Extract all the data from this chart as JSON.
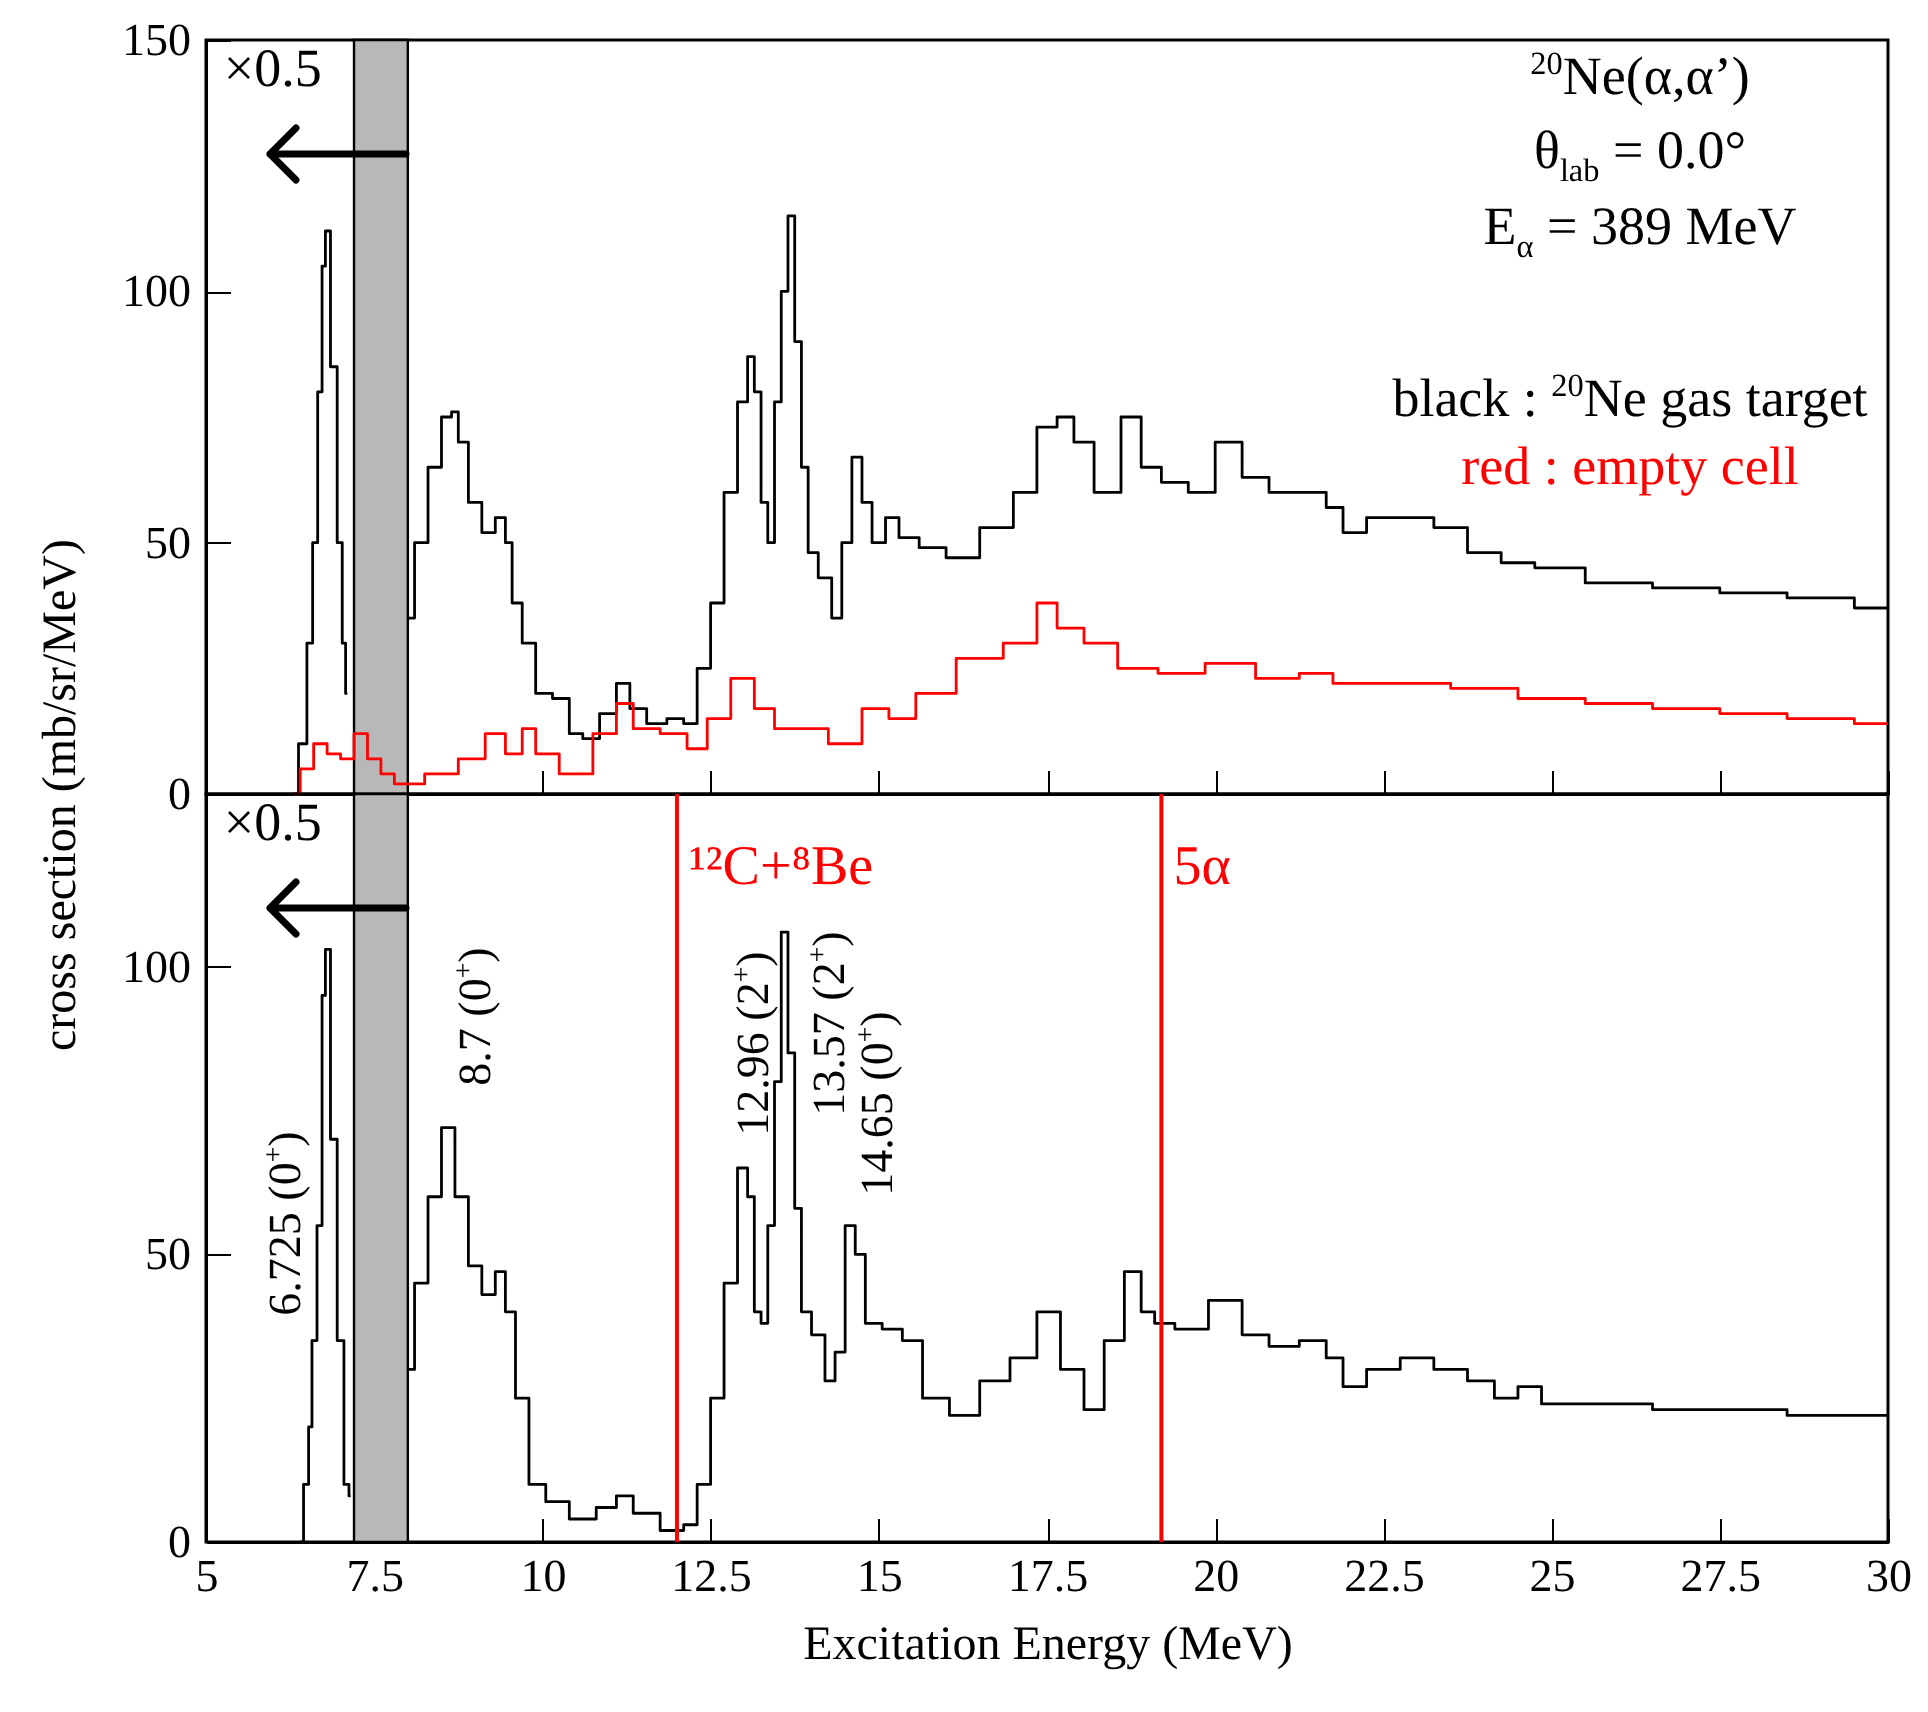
{
  "chart_data": [
    {
      "type": "step",
      "xlim": [
        5,
        30
      ],
      "xticks": [
        5,
        7.5,
        10,
        12.5,
        15,
        17.5,
        20,
        22.5,
        25,
        27.5,
        30
      ],
      "ylim": [
        0,
        150
      ],
      "yticks": [
        0,
        50,
        100,
        150
      ],
      "tick_labels": "y",
      "series": [
        {
          "name": "black : $^{20}$Ne gas target",
          "color": "#000000",
          "x": [
            6.3,
            6.45,
            6.55,
            6.62,
            6.7,
            6.75,
            6.8,
            6.9,
            7.0,
            7.05,
            7.1,
            7.2,
            8.0,
            8.2,
            8.4,
            8.6,
            8.7,
            8.8,
            9.0,
            9.2,
            9.4,
            9.5,
            9.6,
            9.8,
            10.0,
            10.3,
            10.5,
            10.7,
            11.0,
            11.2,
            11.4,
            11.7,
            12.0,
            12.2,
            12.4,
            12.6,
            12.8,
            13.0,
            13.1,
            13.2,
            13.3,
            13.4,
            13.5,
            13.6,
            13.7,
            13.8,
            13.9,
            14.0,
            14.2,
            14.4,
            14.5,
            14.7,
            14.8,
            15.0,
            15.2,
            15.4,
            15.8,
            16.2,
            16.8,
            17.2,
            17.5,
            17.8,
            18.0,
            18.4,
            18.8,
            19.0,
            19.4,
            19.8,
            20.2,
            20.6,
            21.0,
            21.5,
            21.8,
            22.0,
            22.5,
            23.0,
            23.5,
            24.0,
            24.5,
            25.0,
            26.0,
            27.0,
            28.0,
            29.0,
            30.0
          ],
          "values": [
            0,
            10,
            30,
            50,
            80,
            105,
            112,
            85,
            50,
            30,
            20,
            null,
            35,
            50,
            65,
            75,
            76,
            70,
            58,
            52,
            55,
            50,
            38,
            30,
            20,
            19,
            12,
            11,
            16,
            22,
            17,
            14,
            15,
            14,
            25,
            38,
            60,
            78,
            87,
            80,
            58,
            50,
            78,
            100,
            115,
            90,
            65,
            48,
            43,
            35,
            50,
            67,
            58,
            50,
            55,
            51,
            49,
            47,
            53,
            60,
            73,
            75,
            70,
            60,
            75,
            65,
            62,
            60,
            70,
            63,
            60,
            60,
            57,
            52,
            55,
            55,
            53,
            48,
            46,
            45,
            42,
            41,
            40,
            39,
            37
          ]
        },
        {
          "name": "red : empty cell",
          "color": "#ff0000",
          "x": [
            6.3,
            6.5,
            6.7,
            6.9,
            7.1,
            7.3,
            7.5,
            7.7,
            7.9,
            8.0,
            8.5,
            9.0,
            9.3,
            9.6,
            9.8,
            10.0,
            10.5,
            11.0,
            11.2,
            11.5,
            12.0,
            12.3,
            12.6,
            13.0,
            13.3,
            13.6,
            14.0,
            14.5,
            15.0,
            15.3,
            15.8,
            16.5,
            17.2,
            17.5,
            17.8,
            18.3,
            18.8,
            19.5,
            20.2,
            21.0,
            21.5,
            22.0,
            23.0,
            24.0,
            25.0,
            26.0,
            27.0,
            28.0,
            29.0,
            30.0
          ],
          "values": [
            0,
            5,
            10,
            8,
            7,
            12,
            7,
            4,
            2,
            2,
            4,
            7,
            12,
            8,
            13,
            8,
            4,
            12,
            18,
            13,
            12,
            9,
            15,
            23,
            17,
            13,
            13,
            10,
            17,
            15,
            20,
            27,
            30,
            38,
            33,
            30,
            25,
            24,
            26,
            23,
            24,
            22,
            22,
            21,
            19,
            18,
            17,
            16,
            15,
            14
          ]
        }
      ],
      "bands": [
        {
          "axis": "x",
          "from": 7.2,
          "to": 8.0,
          "color": "#b8b8b8",
          "label": "×0.5"
        }
      ],
      "annotations": [
        "$^{20}$Ne(α,α’)",
        "θ$_{lab}$ = 0.0°",
        "E$_{α}$ = 389 MeV"
      ]
    },
    {
      "type": "step",
      "xlabel": "Excitation Energy (MeV)",
      "ylabel": "cross section (mb/sr/MeV)",
      "xlim": [
        5,
        30
      ],
      "xticks": [
        5,
        7.5,
        10,
        12.5,
        15,
        17.5,
        20,
        22.5,
        25,
        27.5,
        30
      ],
      "ylim": [
        0,
        130
      ],
      "yticks": [
        0,
        50,
        100
      ],
      "series": [
        {
          "color": "#000000",
          "x": [
            6.4,
            6.5,
            6.55,
            6.6,
            6.7,
            6.75,
            6.8,
            6.9,
            7.0,
            7.1,
            7.15,
            7.2,
            8.0,
            8.2,
            8.4,
            8.6,
            8.8,
            9.0,
            9.2,
            9.4,
            9.5,
            9.7,
            9.9,
            10.2,
            10.6,
            11.0,
            11.2,
            11.5,
            12.0,
            12.2,
            12.4,
            12.6,
            12.8,
            13.0,
            13.1,
            13.2,
            13.3,
            13.4,
            13.5,
            13.6,
            13.7,
            13.8,
            13.9,
            14.1,
            14.3,
            14.4,
            14.6,
            14.7,
            14.9,
            15.2,
            15.5,
            15.8,
            16.3,
            16.7,
            17.2,
            17.5,
            17.9,
            18.2,
            18.5,
            18.8,
            19.0,
            19.2,
            19.6,
            20.2,
            20.6,
            21.0,
            21.5,
            21.8,
            22.0,
            22.5,
            23.0,
            23.5,
            24.0,
            24.3,
            24.7,
            25.0,
            26.0,
            27.0,
            28.0,
            29.0,
            30.0
          ],
          "values": [
            0,
            10,
            20,
            35,
            55,
            95,
            103,
            70,
            35,
            10,
            8,
            null,
            30,
            45,
            60,
            72,
            60,
            48,
            43,
            47,
            40,
            25,
            10,
            7,
            4,
            6,
            8,
            5,
            2,
            3,
            10,
            25,
            45,
            65,
            60,
            40,
            38,
            55,
            80,
            106,
            85,
            58,
            40,
            36,
            28,
            33,
            55,
            50,
            38,
            37,
            35,
            25,
            22,
            28,
            32,
            40,
            30,
            23,
            35,
            47,
            40,
            38,
            37,
            42,
            36,
            34,
            35,
            32,
            27,
            30,
            32,
            30,
            28,
            25,
            27,
            24,
            24,
            23,
            23,
            22,
            22
          ]
        }
      ],
      "bands": [
        {
          "axis": "x",
          "from": 7.2,
          "to": 8.0,
          "color": "#b8b8b8",
          "label": "×0.5"
        }
      ],
      "ref_lines": [
        {
          "axis": "x",
          "value": 12.0,
          "label": "¹²C+⁸Be",
          "color": "#ff0000"
        },
        {
          "axis": "x",
          "value": 19.2,
          "label": "5α",
          "color": "#ff0000"
        }
      ],
      "annotations": [
        "6.725 (0$^{+}$)",
        "8.7 (0$^{+}$)",
        "12.96 (2$^{+}$)",
        "13.57 (2$^{+}$)",
        "14.65 (0$^{+}$)"
      ]
    }
  ]
}
